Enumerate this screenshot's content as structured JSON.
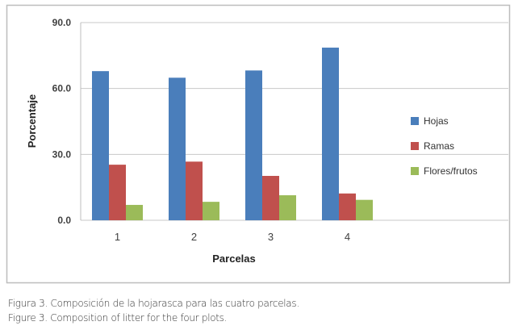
{
  "chart_data": {
    "type": "bar",
    "title": "",
    "xlabel": "Parcelas",
    "ylabel": "Porcentaje",
    "ylim": [
      0,
      90
    ],
    "yticks": [
      "0.0",
      "30.0",
      "60.0",
      "90.0"
    ],
    "ytick_values": [
      0,
      30,
      60,
      90
    ],
    "categories": [
      "1",
      "2",
      "3",
      "4"
    ],
    "grid": true,
    "legend_position": "right",
    "series": [
      {
        "name": "Hojas",
        "color": "#4a7ebb",
        "values": [
          67.9,
          64.9,
          68.2,
          78.6
        ]
      },
      {
        "name": "Ramas",
        "color": "#c0504d",
        "values": [
          25.3,
          26.7,
          20.2,
          12.2
        ]
      },
      {
        "name": "Flores/frutos",
        "color": "#9bbb59",
        "values": [
          7.0,
          8.4,
          11.4,
          9.3
        ]
      }
    ]
  },
  "caption": {
    "es": "Figura 3. Composición de la hojarasca para las cuatro parcelas.",
    "en": "Figure 3. Composition of litter for the four plots."
  }
}
